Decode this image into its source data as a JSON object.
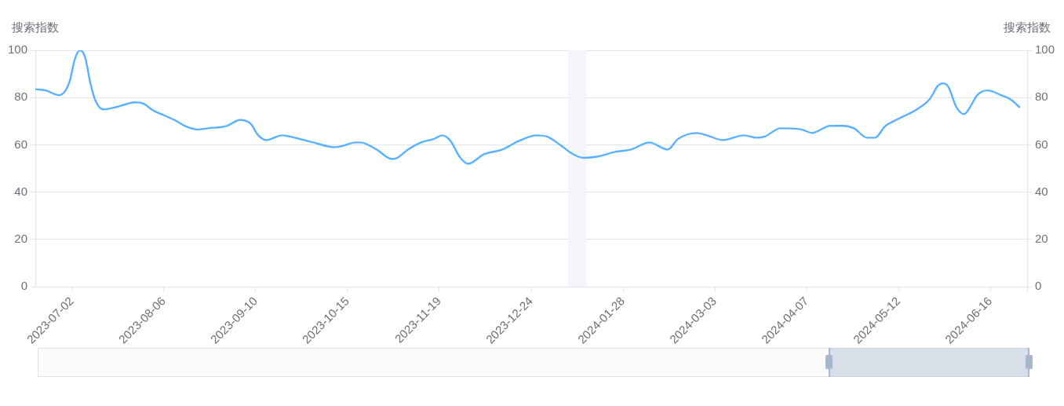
{
  "chart_data": {
    "type": "line",
    "ylabel": "搜索指数",
    "y2label": "搜索指数",
    "x": [
      "2023-06-18",
      "2023-06-22",
      "2023-06-27",
      "2023-07-01",
      "2023-07-03",
      "2023-07-05",
      "2023-07-07",
      "2023-07-09",
      "2023-07-11",
      "2023-07-14",
      "2023-07-19",
      "2023-07-22",
      "2023-07-26",
      "2023-07-29",
      "2023-08-02",
      "2023-08-06",
      "2023-08-10",
      "2023-08-14",
      "2023-08-19",
      "2023-08-23",
      "2023-08-30",
      "2023-09-04",
      "2023-09-08",
      "2023-09-11",
      "2023-09-14",
      "2023-09-20",
      "2023-09-23",
      "2023-10-02",
      "2023-10-10",
      "2023-10-13",
      "2023-10-18",
      "2023-10-20",
      "2023-10-26",
      "2023-11-01",
      "2023-11-03",
      "2023-11-07",
      "2023-11-12",
      "2023-11-17",
      "2023-11-20",
      "2023-11-23",
      "2023-11-27",
      "2023-11-30",
      "2023-12-06",
      "2023-12-13",
      "2023-12-19",
      "2023-12-26",
      "2023-12-30",
      "2024-01-04",
      "2024-01-09",
      "2024-01-13",
      "2024-01-18",
      "2024-01-25",
      "2024-01-31",
      "2024-02-07",
      "2024-02-14",
      "2024-02-18",
      "2024-02-25",
      "2024-02-29",
      "2024-03-06",
      "2024-03-14",
      "2024-03-19",
      "2024-03-22",
      "2024-03-28",
      "2024-04-05",
      "2024-04-09",
      "2024-04-16",
      "2024-04-21",
      "2024-04-25",
      "2024-04-30",
      "2024-05-03",
      "2024-05-07",
      "2024-05-12",
      "2024-05-19",
      "2024-05-24",
      "2024-05-27",
      "2024-05-29",
      "2024-05-31",
      "2024-06-03",
      "2024-06-06",
      "2024-06-08",
      "2024-06-11",
      "2024-06-15",
      "2024-06-20",
      "2024-06-24",
      "2024-06-27"
    ],
    "series": [
      {
        "color": "#5ab1ff",
        "values": [
          83.5,
          83,
          81,
          86.5,
          96,
          100,
          97,
          86,
          78.5,
          75,
          76,
          77,
          78,
          77.5,
          74.5,
          72.5,
          70.5,
          68,
          66.5,
          67,
          68,
          70.5,
          69,
          64,
          62,
          64,
          63.5,
          61,
          59,
          59.5,
          61,
          61,
          58,
          54,
          54.5,
          58,
          61,
          62.5,
          64,
          62,
          54.5,
          52,
          56,
          58,
          61.5,
          64,
          63.5,
          60,
          56,
          54.5,
          55,
          57,
          58,
          61,
          58,
          62.5,
          65,
          64,
          62,
          64,
          63,
          63.5,
          67,
          66.5,
          65,
          68,
          68,
          67,
          63,
          63,
          68,
          71,
          75,
          79.5,
          85,
          86,
          84.5,
          76,
          73,
          75.5,
          81,
          83,
          81,
          79,
          76
        ]
      }
    ],
    "xlim": [
      "2023-06-18",
      "2024-06-30"
    ],
    "xticks": [
      "2023-07-02",
      "2023-08-06",
      "2023-09-10",
      "2023-10-15",
      "2023-11-19",
      "2023-12-24",
      "2024-01-28",
      "2024-03-03",
      "2024-04-07",
      "2024-05-12",
      "2024-06-16",
      {
        "value": "2024-06-30",
        "label": null
      }
    ],
    "ylim": [
      0,
      100
    ],
    "yticks": [
      0,
      20,
      40,
      60,
      80,
      100
    ],
    "y2lim": [
      0,
      100
    ],
    "y2ticks": [
      0,
      20,
      40,
      60,
      80,
      100
    ],
    "grid": "y",
    "bands": [
      {
        "axis": "x",
        "from": "2024-01-07",
        "to": "2024-01-14",
        "color": "#f3f5f9"
      }
    ]
  }
}
